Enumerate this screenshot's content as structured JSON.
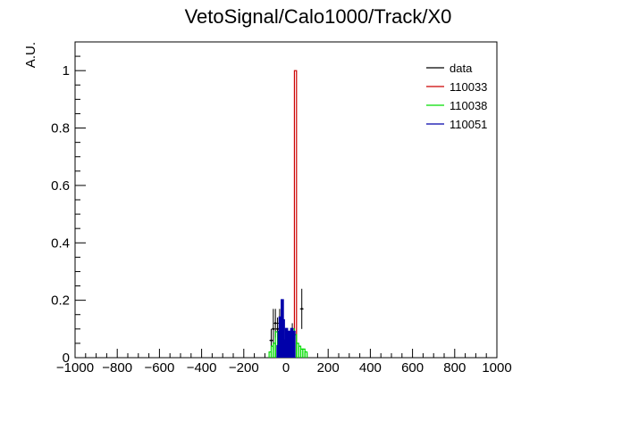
{
  "chart_data": {
    "type": "histogram",
    "title": "VetoSignal/Calo1000/Track/X0",
    "ylabel": "A.U.",
    "xlabel": "",
    "xlim": [
      -1000,
      1000
    ],
    "ylim": [
      0,
      1.1
    ],
    "x_ticks": [
      -1000,
      -800,
      -600,
      -400,
      -200,
      0,
      200,
      400,
      600,
      800,
      1000
    ],
    "x_tick_labels": [
      "−1000",
      "−800",
      "−600",
      "−400",
      "−200",
      "0",
      "200",
      "400",
      "600",
      "800",
      "1000"
    ],
    "y_ticks": [
      0,
      0.2,
      0.4,
      0.6,
      0.8,
      1
    ],
    "y_tick_labels": [
      "0",
      "0.2",
      "0.4",
      "0.6",
      "0.8",
      "1"
    ],
    "legend_position": "top-right",
    "series": [
      {
        "name": "data",
        "color": "#000000",
        "style": "points",
        "bins": [
          {
            "x": -70,
            "y": 0.06,
            "err": 0.04
          },
          {
            "x": -60,
            "y": 0.1,
            "err": 0.07
          },
          {
            "x": -50,
            "y": 0.12,
            "err": 0.05
          },
          {
            "x": -40,
            "y": 0.1,
            "err": 0.04
          },
          {
            "x": -30,
            "y": 0.12,
            "err": 0.05
          },
          {
            "x": -20,
            "y": 0.08,
            "err": 0.04
          },
          {
            "x": -10,
            "y": 0.05,
            "err": 0.03
          },
          {
            "x": 0,
            "y": 0.06,
            "err": 0.04
          },
          {
            "x": 10,
            "y": 0.03,
            "err": 0.02
          },
          {
            "x": 20,
            "y": 0.06,
            "err": 0.03
          },
          {
            "x": 30,
            "y": 0.08,
            "err": 0.04
          },
          {
            "x": 75,
            "y": 0.17,
            "err": 0.07
          }
        ]
      },
      {
        "name": "110033",
        "color": "#cc0000",
        "style": "step",
        "bins": [
          {
            "x": 40,
            "width": 10,
            "y": 1.0
          }
        ]
      },
      {
        "name": "110038",
        "color": "#00dd00",
        "style": "step",
        "bins": [
          {
            "x": -80,
            "width": 10,
            "y": 0.02
          },
          {
            "x": -70,
            "width": 10,
            "y": 0.04
          },
          {
            "x": -60,
            "width": 10,
            "y": 0.05
          },
          {
            "x": -50,
            "width": 10,
            "y": 0.09
          },
          {
            "x": -40,
            "width": 10,
            "y": 0.06
          },
          {
            "x": -30,
            "width": 10,
            "y": 0.08
          },
          {
            "x": -20,
            "width": 10,
            "y": 0.06
          },
          {
            "x": -10,
            "width": 10,
            "y": 0.05
          },
          {
            "x": 0,
            "width": 10,
            "y": 0.07
          },
          {
            "x": 10,
            "width": 10,
            "y": 0.06
          },
          {
            "x": 20,
            "width": 10,
            "y": 0.05
          },
          {
            "x": 30,
            "width": 10,
            "y": 0.1
          },
          {
            "x": 40,
            "width": 10,
            "y": 0.08
          },
          {
            "x": 50,
            "width": 10,
            "y": 0.05
          },
          {
            "x": 60,
            "width": 10,
            "y": 0.04
          },
          {
            "x": 70,
            "width": 10,
            "y": 0.03
          },
          {
            "x": 80,
            "width": 10,
            "y": 0.03
          },
          {
            "x": 90,
            "width": 10,
            "y": 0.02
          }
        ]
      },
      {
        "name": "110051",
        "color": "#0000aa",
        "style": "step",
        "bins": [
          {
            "x": -40,
            "width": 5,
            "y": 0.04
          },
          {
            "x": -35,
            "width": 5,
            "y": 0.09
          },
          {
            "x": -30,
            "width": 5,
            "y": 0.14
          },
          {
            "x": -25,
            "width": 5,
            "y": 0.12
          },
          {
            "x": -20,
            "width": 5,
            "y": 0.2
          },
          {
            "x": -15,
            "width": 5,
            "y": 0.13
          },
          {
            "x": -10,
            "width": 5,
            "y": 0.06
          },
          {
            "x": -5,
            "width": 5,
            "y": 0.04
          },
          {
            "x": 0,
            "width": 5,
            "y": 0.1
          },
          {
            "x": 5,
            "width": 5,
            "y": 0.09
          },
          {
            "x": 10,
            "width": 5,
            "y": 0.05
          },
          {
            "x": 15,
            "width": 5,
            "y": 0.03
          },
          {
            "x": 20,
            "width": 5,
            "y": 0.09
          },
          {
            "x": 25,
            "width": 5,
            "y": 0.1
          },
          {
            "x": 30,
            "width": 5,
            "y": 0.07
          },
          {
            "x": 35,
            "width": 5,
            "y": 0.09
          }
        ]
      }
    ]
  }
}
